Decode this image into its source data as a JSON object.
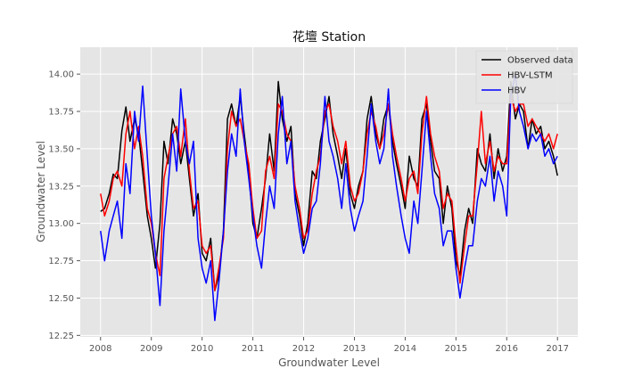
{
  "chart_data": {
    "type": "line",
    "title": "花壇 Station",
    "xlabel": "Groundwater Level",
    "ylabel": "Groundwater Level",
    "xlim": [
      2007.6,
      2017.4
    ],
    "ylim": [
      12.24,
      14.18
    ],
    "xticks": [
      2008,
      2009,
      2010,
      2011,
      2012,
      2013,
      2014,
      2015,
      2016,
      2017
    ],
    "xtick_labels": [
      "2008",
      "2009",
      "2010",
      "2011",
      "2012",
      "2013",
      "2014",
      "2015",
      "2016",
      "2017"
    ],
    "yticks": [
      12.25,
      12.5,
      12.75,
      13.0,
      13.25,
      13.5,
      13.75,
      14.0
    ],
    "ytick_labels": [
      "12.25",
      "12.50",
      "12.75",
      "13.00",
      "13.25",
      "13.50",
      "13.75",
      "14.00"
    ],
    "grid": true,
    "legend_position": "top-right",
    "colors": {
      "background": "#e5e5e5",
      "grid": "#ffffff"
    },
    "series": [
      {
        "name": "Observed data",
        "color": "#000000",
        "x": [
          2008.0,
          2008.08,
          2008.17,
          2008.25,
          2008.33,
          2008.42,
          2008.5,
          2008.58,
          2008.67,
          2008.75,
          2008.83,
          2008.92,
          2009.0,
          2009.08,
          2009.17,
          2009.25,
          2009.33,
          2009.42,
          2009.5,
          2009.58,
          2009.67,
          2009.75,
          2009.83,
          2009.92,
          2010.0,
          2010.08,
          2010.17,
          2010.25,
          2010.33,
          2010.42,
          2010.5,
          2010.58,
          2010.67,
          2010.75,
          2010.83,
          2010.92,
          2011.0,
          2011.08,
          2011.17,
          2011.25,
          2011.33,
          2011.42,
          2011.5,
          2011.58,
          2011.67,
          2011.75,
          2011.83,
          2011.92,
          2012.0,
          2012.08,
          2012.17,
          2012.25,
          2012.33,
          2012.42,
          2012.5,
          2012.58,
          2012.67,
          2012.75,
          2012.83,
          2012.92,
          2013.0,
          2013.08,
          2013.17,
          2013.25,
          2013.33,
          2013.42,
          2013.5,
          2013.58,
          2013.67,
          2013.75,
          2013.83,
          2013.92,
          2014.0,
          2014.08,
          2014.17,
          2014.25,
          2014.33,
          2014.42,
          2014.5,
          2014.58,
          2014.67,
          2014.75,
          2014.83,
          2014.92,
          2015.0,
          2015.08,
          2015.17,
          2015.25,
          2015.33,
          2015.42,
          2015.5,
          2015.58,
          2015.67,
          2015.75,
          2015.83,
          2015.92,
          2016.0,
          2016.08,
          2016.17,
          2016.25,
          2016.33,
          2016.42,
          2016.5,
          2016.58,
          2016.67,
          2016.75,
          2016.83,
          2016.92,
          2017.0
        ],
        "y": [
          13.08,
          13.1,
          13.2,
          13.33,
          13.3,
          13.62,
          13.78,
          13.55,
          13.7,
          13.6,
          13.35,
          13.05,
          12.9,
          12.7,
          13.0,
          13.55,
          13.4,
          13.7,
          13.6,
          13.4,
          13.55,
          13.3,
          13.05,
          13.2,
          12.8,
          12.75,
          12.9,
          12.55,
          12.65,
          12.95,
          13.7,
          13.8,
          13.65,
          13.85,
          13.6,
          13.35,
          13.0,
          12.9,
          13.1,
          13.3,
          13.6,
          13.35,
          13.95,
          13.7,
          13.55,
          13.65,
          13.2,
          13.05,
          12.85,
          13.0,
          13.35,
          13.3,
          13.55,
          13.7,
          13.85,
          13.6,
          13.45,
          13.3,
          13.5,
          13.2,
          13.1,
          13.25,
          13.35,
          13.7,
          13.85,
          13.6,
          13.5,
          13.7,
          13.8,
          13.55,
          13.4,
          13.25,
          13.1,
          13.45,
          13.3,
          13.25,
          13.7,
          13.8,
          13.55,
          13.35,
          13.3,
          13.0,
          13.25,
          13.1,
          12.75,
          12.65,
          12.95,
          13.1,
          13.0,
          13.5,
          13.4,
          13.35,
          13.6,
          13.3,
          13.5,
          13.35,
          13.45,
          13.95,
          13.7,
          13.8,
          13.75,
          13.5,
          13.7,
          13.6,
          13.65,
          13.5,
          13.55,
          13.45,
          13.32
        ]
      },
      {
        "name": "HBV-LSTM",
        "color": "#ff0000",
        "x": [
          2008.0,
          2008.08,
          2008.17,
          2008.25,
          2008.33,
          2008.42,
          2008.5,
          2008.58,
          2008.67,
          2008.75,
          2008.83,
          2008.92,
          2009.0,
          2009.08,
          2009.17,
          2009.25,
          2009.33,
          2009.42,
          2009.5,
          2009.58,
          2009.67,
          2009.75,
          2009.83,
          2009.92,
          2010.0,
          2010.08,
          2010.17,
          2010.25,
          2010.33,
          2010.42,
          2010.5,
          2010.58,
          2010.67,
          2010.75,
          2010.83,
          2010.92,
          2011.0,
          2011.08,
          2011.17,
          2011.25,
          2011.33,
          2011.42,
          2011.5,
          2011.58,
          2011.67,
          2011.75,
          2011.83,
          2011.92,
          2012.0,
          2012.08,
          2012.17,
          2012.25,
          2012.33,
          2012.42,
          2012.5,
          2012.58,
          2012.67,
          2012.75,
          2012.83,
          2012.92,
          2013.0,
          2013.08,
          2013.17,
          2013.25,
          2013.33,
          2013.42,
          2013.5,
          2013.58,
          2013.67,
          2013.75,
          2013.83,
          2013.92,
          2014.0,
          2014.08,
          2014.17,
          2014.25,
          2014.33,
          2014.42,
          2014.5,
          2014.58,
          2014.67,
          2014.75,
          2014.83,
          2014.92,
          2015.0,
          2015.08,
          2015.17,
          2015.25,
          2015.33,
          2015.42,
          2015.5,
          2015.58,
          2015.67,
          2015.75,
          2015.83,
          2015.92,
          2016.0,
          2016.08,
          2016.17,
          2016.25,
          2016.33,
          2016.42,
          2016.5,
          2016.58,
          2016.67,
          2016.75,
          2016.83,
          2016.92,
          2017.0
        ],
        "y": [
          13.2,
          13.05,
          13.15,
          13.3,
          13.35,
          13.25,
          13.6,
          13.75,
          13.5,
          13.65,
          13.45,
          13.1,
          13.0,
          12.8,
          12.65,
          13.3,
          13.45,
          13.6,
          13.65,
          13.45,
          13.7,
          13.35,
          13.1,
          13.15,
          12.85,
          12.8,
          12.85,
          12.55,
          12.7,
          12.9,
          13.5,
          13.75,
          13.65,
          13.7,
          13.55,
          13.4,
          13.1,
          12.9,
          12.95,
          13.35,
          13.45,
          13.3,
          13.8,
          13.75,
          13.6,
          13.55,
          13.25,
          13.1,
          12.9,
          12.95,
          13.2,
          13.35,
          13.45,
          13.75,
          13.8,
          13.65,
          13.55,
          13.4,
          13.55,
          13.25,
          13.15,
          13.2,
          13.35,
          13.6,
          13.75,
          13.65,
          13.5,
          13.6,
          13.8,
          13.6,
          13.45,
          13.3,
          13.15,
          13.3,
          13.35,
          13.2,
          13.6,
          13.85,
          13.6,
          13.45,
          13.35,
          13.1,
          13.2,
          13.15,
          12.85,
          12.6,
          12.85,
          13.05,
          13.05,
          13.4,
          13.75,
          13.4,
          13.55,
          13.35,
          13.45,
          13.4,
          13.4,
          13.85,
          13.75,
          13.8,
          13.8,
          13.65,
          13.7,
          13.65,
          13.6,
          13.55,
          13.6,
          13.5,
          13.6
        ]
      },
      {
        "name": "HBV",
        "color": "#0000ff",
        "x": [
          2008.0,
          2008.08,
          2008.17,
          2008.25,
          2008.33,
          2008.42,
          2008.5,
          2008.58,
          2008.67,
          2008.75,
          2008.83,
          2008.92,
          2009.0,
          2009.08,
          2009.17,
          2009.25,
          2009.33,
          2009.42,
          2009.5,
          2009.58,
          2009.67,
          2009.75,
          2009.83,
          2009.92,
          2010.0,
          2010.08,
          2010.17,
          2010.25,
          2010.33,
          2010.42,
          2010.5,
          2010.58,
          2010.67,
          2010.75,
          2010.83,
          2010.92,
          2011.0,
          2011.08,
          2011.17,
          2011.25,
          2011.33,
          2011.42,
          2011.5,
          2011.58,
          2011.67,
          2011.75,
          2011.83,
          2011.92,
          2012.0,
          2012.08,
          2012.17,
          2012.25,
          2012.33,
          2012.42,
          2012.5,
          2012.58,
          2012.67,
          2012.75,
          2012.83,
          2012.92,
          2013.0,
          2013.08,
          2013.17,
          2013.25,
          2013.33,
          2013.42,
          2013.5,
          2013.58,
          2013.67,
          2013.75,
          2013.83,
          2013.92,
          2014.0,
          2014.08,
          2014.17,
          2014.25,
          2014.33,
          2014.42,
          2014.5,
          2014.58,
          2014.67,
          2014.75,
          2014.83,
          2014.92,
          2015.0,
          2015.08,
          2015.17,
          2015.25,
          2015.33,
          2015.42,
          2015.5,
          2015.58,
          2015.67,
          2015.75,
          2015.83,
          2015.92,
          2016.0,
          2016.08,
          2016.17,
          2016.25,
          2016.33,
          2016.42,
          2016.5,
          2016.58,
          2016.67,
          2016.75,
          2016.83,
          2016.92,
          2017.0
        ],
        "y": [
          12.95,
          12.75,
          12.95,
          13.05,
          13.15,
          12.9,
          13.4,
          13.2,
          13.75,
          13.55,
          13.92,
          13.45,
          13.05,
          12.8,
          12.45,
          12.95,
          13.25,
          13.6,
          13.35,
          13.9,
          13.55,
          13.4,
          13.55,
          12.9,
          12.7,
          12.6,
          12.75,
          12.35,
          12.6,
          12.95,
          13.35,
          13.6,
          13.45,
          13.9,
          13.55,
          13.3,
          13.05,
          12.85,
          12.7,
          13.0,
          13.25,
          13.1,
          13.6,
          13.85,
          13.4,
          13.55,
          13.15,
          12.95,
          12.8,
          12.9,
          13.1,
          13.15,
          13.4,
          13.85,
          13.55,
          13.45,
          13.3,
          13.1,
          13.4,
          13.1,
          12.95,
          13.05,
          13.15,
          13.45,
          13.8,
          13.55,
          13.4,
          13.5,
          13.9,
          13.45,
          13.25,
          13.05,
          12.9,
          12.8,
          13.15,
          13.0,
          13.35,
          13.75,
          13.45,
          13.2,
          13.1,
          12.85,
          12.95,
          12.95,
          12.7,
          12.5,
          12.7,
          12.85,
          12.85,
          13.15,
          13.3,
          13.25,
          13.45,
          13.15,
          13.35,
          13.25,
          13.05,
          13.85,
          14.0,
          13.75,
          13.65,
          13.5,
          13.6,
          13.55,
          13.6,
          13.45,
          13.5,
          13.4,
          13.45
        ]
      }
    ]
  }
}
